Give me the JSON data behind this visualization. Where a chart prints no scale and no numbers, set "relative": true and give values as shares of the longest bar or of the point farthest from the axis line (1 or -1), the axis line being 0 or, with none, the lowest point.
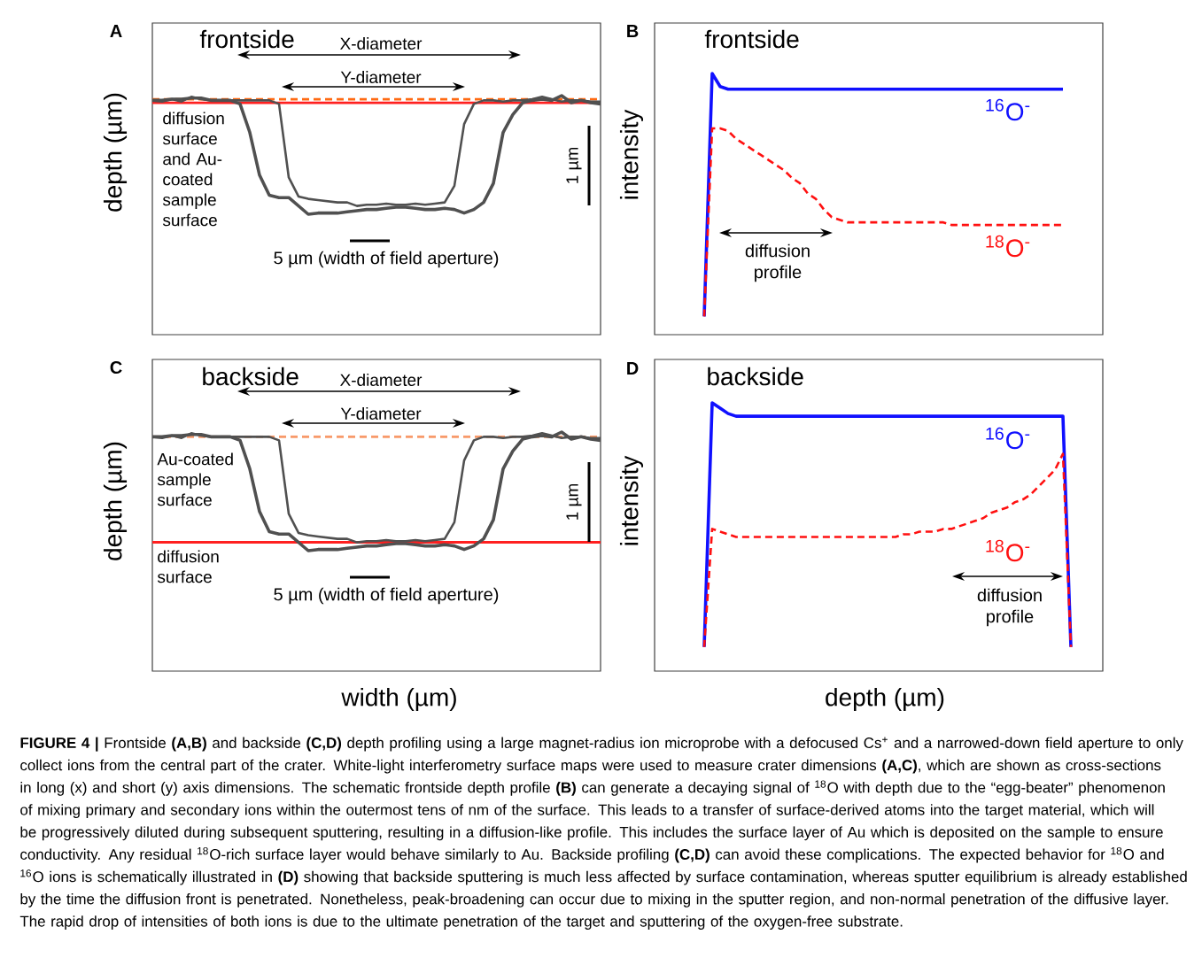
{
  "chart_data": [
    {
      "type": "line",
      "title": "frontside",
      "ylabel": "depth (µm)",
      "relative": true,
      "categories": [
        null,
        null,
        null,
        null,
        null,
        null,
        null,
        null,
        null,
        null,
        null,
        null,
        null,
        null,
        null,
        null,
        null,
        null,
        null,
        null,
        null,
        null,
        null,
        null,
        null,
        null,
        null,
        null,
        null,
        null,
        null,
        null,
        null,
        null,
        null,
        null,
        null,
        null,
        null,
        null,
        null,
        null,
        null,
        null,
        null,
        null,
        null
      ],
      "series": [
        {
          "color": "#505050",
          "values": [
            0.96,
            0.96,
            0.97,
            0.97,
            0.98,
            0.98,
            0.96,
            0.96,
            0.96,
            0.93,
            0.69,
            0.33,
            0.16,
            0.14,
            0.14,
            0.07,
            0.0,
            0.01,
            0.01,
            0.01,
            0.02,
            0.03,
            0.04,
            0.04,
            0.05,
            0.06,
            0.06,
            0.05,
            0.04,
            0.04,
            0.05,
            0.04,
            0.01,
            0.04,
            0.1,
            0.26,
            0.69,
            0.84,
            0.94,
            0.96,
            0.97,
            0.96,
            1.0,
            0.94,
            0.96,
            0.94,
            0.93
          ]
        },
        {
          "color": "#505050",
          "values": [
            0.96,
            0.95,
            0.97,
            0.95,
            0.99,
            0.97,
            0.96,
            0.96,
            0.96,
            0.96,
            0.96,
            0.96,
            0.96,
            0.93,
            0.31,
            0.15,
            0.13,
            0.12,
            0.11,
            0.1,
            0.1,
            0.07,
            0.08,
            0.08,
            0.09,
            0.08,
            0.08,
            0.09,
            0.08,
            0.09,
            0.1,
            0.24,
            0.76,
            0.93,
            0.96,
            0.96,
            0.95,
            0.96,
            0.96,
            0.97,
            0.99,
            0.97,
            0.95,
            0.96,
            0.96,
            0.95,
            0.95
          ]
        }
      ],
      "ref_lines": [
        {
          "axis": "y",
          "value": 0.97,
          "color": "#ff6a13",
          "line_style": "dashed"
        },
        {
          "axis": "y",
          "value": 0.94,
          "color": "#ff2020",
          "label": "diffusion surface and Au-coated sample surface"
        }
      ],
      "annotations": [
        "A",
        "X-diameter",
        "Y-diameter",
        "1 µm",
        "5 µm (width of field aperture)"
      ]
    },
    {
      "type": "line",
      "title": "frontside",
      "ylabel": "intensity",
      "relative": true,
      "categories": [
        null,
        null,
        null,
        null,
        null,
        null,
        null,
        null,
        null,
        null,
        null,
        null,
        null,
        null,
        null,
        null,
        null,
        null,
        null,
        null,
        null,
        null,
        null,
        null,
        null,
        null,
        null,
        null,
        null,
        null,
        null,
        null,
        null,
        null,
        null,
        null,
        null,
        null,
        null,
        null,
        null,
        null,
        null,
        null,
        null,
        null
      ],
      "series": [
        {
          "name": "$^{16}$O$^{-}$",
          "color": "#1010ff",
          "values": [
            0.07,
            1,
            0.95,
            0.94,
            0.94,
            0.94,
            0.94,
            0.94,
            0.94,
            0.94,
            0.94,
            0.94,
            0.94,
            0.94,
            0.94,
            0.94,
            0.94,
            0.94,
            0.94,
            0.94,
            0.94,
            0.94,
            0.94,
            0.94,
            0.94,
            0.94,
            0.94,
            0.94,
            0.94,
            0.94,
            0.94,
            0.94,
            0.94,
            0.94,
            0.94,
            0.94,
            0.94,
            0.94,
            0.94,
            0.94,
            0.94,
            0.94,
            0.94,
            0.94,
            0.94,
            0.94
          ]
        },
        {
          "name": "$^{18}$O$^{-}$",
          "color": "#ff1010",
          "line_style": "dashed",
          "values": [
            0.07,
            0.79,
            0.79,
            0.78,
            0.75,
            0.73,
            0.71,
            0.69,
            0.67,
            0.65,
            0.63,
            0.6,
            0.58,
            0.54,
            0.52,
            0.48,
            0.45,
            0.44,
            0.43,
            0.43,
            0.43,
            0.43,
            0.43,
            0.43,
            0.43,
            0.43,
            0.43,
            0.43,
            0.43,
            0.43,
            0.43,
            0.42,
            0.42,
            0.42,
            0.42,
            0.42,
            0.42,
            0.42,
            0.42,
            0.42,
            0.42,
            0.42,
            0.42,
            0.42,
            0.42,
            0.42
          ]
        }
      ],
      "annotations": [
        "B",
        "diffusion profile"
      ]
    },
    {
      "type": "line",
      "title": "backside",
      "xlabel": "width (µm)",
      "ylabel": "depth (µm)",
      "relative": true,
      "categories": [
        null,
        null,
        null,
        null,
        null,
        null,
        null,
        null,
        null,
        null,
        null,
        null,
        null,
        null,
        null,
        null,
        null,
        null,
        null,
        null,
        null,
        null,
        null,
        null,
        null,
        null,
        null,
        null,
        null,
        null,
        null,
        null,
        null,
        null,
        null,
        null,
        null,
        null,
        null,
        null,
        null,
        null,
        null,
        null,
        null,
        null,
        null
      ],
      "series": [
        {
          "color": "#505050",
          "values": [
            0.96,
            0.96,
            0.97,
            0.97,
            0.98,
            0.98,
            0.96,
            0.96,
            0.96,
            0.93,
            0.69,
            0.33,
            0.16,
            0.14,
            0.14,
            0.07,
            0.0,
            0.01,
            0.01,
            0.01,
            0.02,
            0.03,
            0.04,
            0.04,
            0.05,
            0.06,
            0.06,
            0.05,
            0.04,
            0.04,
            0.05,
            0.04,
            0.01,
            0.04,
            0.1,
            0.26,
            0.69,
            0.84,
            0.94,
            0.96,
            0.97,
            0.96,
            1.0,
            0.94,
            0.96,
            0.94,
            0.93
          ]
        },
        {
          "color": "#505050",
          "values": [
            0.96,
            0.95,
            0.97,
            0.95,
            0.99,
            0.97,
            0.96,
            0.96,
            0.96,
            0.96,
            0.96,
            0.96,
            0.96,
            0.93,
            0.31,
            0.15,
            0.13,
            0.12,
            0.11,
            0.1,
            0.1,
            0.07,
            0.08,
            0.08,
            0.09,
            0.08,
            0.08,
            0.09,
            0.08,
            0.09,
            0.1,
            0.24,
            0.76,
            0.93,
            0.96,
            0.96,
            0.95,
            0.96,
            0.96,
            0.97,
            0.99,
            0.97,
            0.95,
            0.96,
            0.96,
            0.95,
            0.95
          ]
        }
      ],
      "ref_lines": [
        {
          "axis": "y",
          "value": 0.96,
          "color": "#f89a6a",
          "line_style": "dashed",
          "label": "Au-coated sample surface"
        },
        {
          "axis": "y",
          "value": 0.07,
          "color": "#ff2020",
          "label": "diffusion surface"
        }
      ],
      "annotations": [
        "C",
        "X-diameter",
        "Y-diameter",
        "1 µm",
        "5 µm (width of field aperture)"
      ]
    },
    {
      "type": "line",
      "title": "backside",
      "xlabel": "depth (µm)",
      "ylabel": "intensity",
      "relative": true,
      "categories": [
        null,
        null,
        null,
        null,
        null,
        null,
        null,
        null,
        null,
        null,
        null,
        null,
        null,
        null,
        null,
        null,
        null,
        null,
        null,
        null,
        null,
        null,
        null,
        null,
        null,
        null,
        null,
        null,
        null,
        null,
        null,
        null,
        null,
        null,
        null,
        null,
        null,
        null,
        null,
        null,
        null,
        null,
        null,
        null,
        null,
        null,
        null
      ],
      "series": [
        {
          "name": "$^{16}$O$^{-}$",
          "color": "#1010ff",
          "values": [
            0.09,
            1,
            0.98,
            0.96,
            0.95,
            0.95,
            0.95,
            0.95,
            0.95,
            0.95,
            0.95,
            0.95,
            0.95,
            0.95,
            0.95,
            0.95,
            0.95,
            0.95,
            0.95,
            0.95,
            0.95,
            0.95,
            0.95,
            0.95,
            0.95,
            0.95,
            0.95,
            0.95,
            0.95,
            0.95,
            0.95,
            0.95,
            0.95,
            0.95,
            0.95,
            0.95,
            0.95,
            0.95,
            0.95,
            0.95,
            0.95,
            0.95,
            0.95,
            0.95,
            0.95,
            0.95,
            0.09
          ]
        },
        {
          "name": "$^{18}$O$^{-}$",
          "color": "#ff1010",
          "line_style": "dashed",
          "values": [
            0.09,
            0.53,
            0.52,
            0.51,
            0.5,
            0.5,
            0.5,
            0.5,
            0.5,
            0.5,
            0.5,
            0.5,
            0.5,
            0.5,
            0.5,
            0.5,
            0.5,
            0.5,
            0.5,
            0.5,
            0.5,
            0.5,
            0.5,
            0.5,
            0.5,
            0.51,
            0.51,
            0.52,
            0.52,
            0.52,
            0.53,
            0.53,
            0.54,
            0.55,
            0.56,
            0.57,
            0.59,
            0.6,
            0.61,
            0.63,
            0.64,
            0.66,
            0.69,
            0.72,
            0.75,
            0.81,
            0.09
          ]
        }
      ],
      "annotations": [
        "D",
        "diffusion profile",
        "**FIGURE 4 |** Frontside **(A,B)** and backside **(C,D)** depth profiling using a large magnet-radius ion microprobe with a defocused Cs$^{+}$ and a narrowed-down field aperture to only collect ions from the central part of the crater. White-light interferometry surface maps were used to measure crater dimensions **(A,C)**, which are shown as cross-sections in long (x) and short (y) axis dimensions. The schematic frontside depth profile **(B)** can generate a decaying signal of $^{18}$O with depth due to the “egg-beater” phenomenon of mixing primary and secondary ions within the outermost tens of nm of the surface. This leads to a transfer of surface-derived atoms into the target material, which will be progressively diluted during subsequent sputtering, resulting in a diffusion-like profile. This includes the surface layer of Au which is deposited on the sample to ensure conductivity. Any residual $^{18}$O-rich surface layer would behave similarly to Au. Backside profiling **(C,D)** can avoid these complications. The expected behavior for $^{18}$O and $^{16}$O ions is schematically illustrated in **(D)** showing that backside sputtering is much less affected by surface contamination, whereas sputter equilibrium is already established by the time the diffusion front is penetrated. Nonetheless, peak-broadening can occur due to mixing in the sputter region, and non-normal penetration of the diffusive layer. The rapid drop of intensities of both ions is due to the ultimate penetration of the target and sputtering of the oxygen-free substrate."
      ]
    }
  ]
}
